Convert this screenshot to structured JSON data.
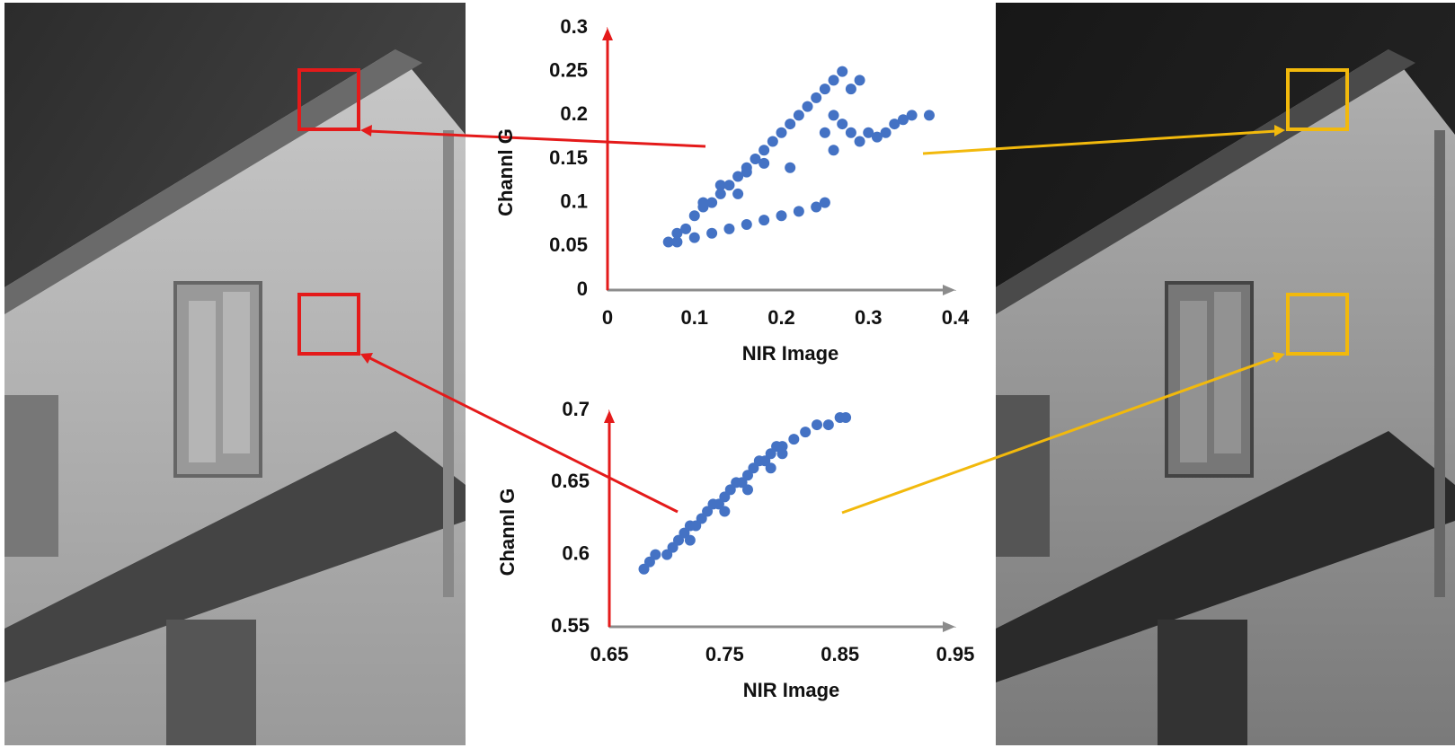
{
  "chart_data": [
    {
      "type": "scatter",
      "x_label": "NIR Image",
      "y_label": "Channl G",
      "color": "#4472c4",
      "xlim": [
        0,
        0.4
      ],
      "ylim": [
        0,
        0.3
      ],
      "xticks": [
        0,
        0.1,
        0.2,
        0.3,
        0.4
      ],
      "yticks": [
        0,
        0.05,
        0.1,
        0.15,
        0.2,
        0.25,
        0.3
      ],
      "x": [
        0.07,
        0.08,
        0.09,
        0.1,
        0.11,
        0.12,
        0.13,
        0.14,
        0.15,
        0.16,
        0.17,
        0.18,
        0.19,
        0.2,
        0.21,
        0.22,
        0.23,
        0.24,
        0.25,
        0.26,
        0.27,
        0.08,
        0.1,
        0.12,
        0.14,
        0.16,
        0.18,
        0.2,
        0.22,
        0.24,
        0.25,
        0.13,
        0.16,
        0.18,
        0.21,
        0.11,
        0.15,
        0.26,
        0.27,
        0.28,
        0.29,
        0.3,
        0.31,
        0.32,
        0.33,
        0.34,
        0.35,
        0.37,
        0.25,
        0.26,
        0.28,
        0.29
      ],
      "y": [
        0.055,
        0.065,
        0.07,
        0.085,
        0.095,
        0.1,
        0.11,
        0.12,
        0.13,
        0.135,
        0.15,
        0.16,
        0.17,
        0.18,
        0.19,
        0.2,
        0.21,
        0.22,
        0.23,
        0.24,
        0.25,
        0.055,
        0.06,
        0.065,
        0.07,
        0.075,
        0.08,
        0.085,
        0.09,
        0.095,
        0.1,
        0.12,
        0.14,
        0.145,
        0.14,
        0.1,
        0.11,
        0.2,
        0.19,
        0.18,
        0.17,
        0.18,
        0.175,
        0.18,
        0.19,
        0.195,
        0.2,
        0.2,
        0.18,
        0.16,
        0.23,
        0.24
      ]
    },
    {
      "type": "scatter",
      "x_label": "NIR Image",
      "y_label": "Channl G",
      "color": "#4472c4",
      "xlim": [
        0.65,
        0.95
      ],
      "ylim": [
        0.55,
        0.7
      ],
      "xticks": [
        0.65,
        0.75,
        0.85,
        0.95
      ],
      "yticks": [
        0.55,
        0.6,
        0.65,
        0.7
      ],
      "x": [
        0.68,
        0.685,
        0.69,
        0.7,
        0.705,
        0.71,
        0.715,
        0.72,
        0.725,
        0.73,
        0.735,
        0.74,
        0.745,
        0.75,
        0.755,
        0.76,
        0.765,
        0.77,
        0.775,
        0.78,
        0.785,
        0.79,
        0.795,
        0.8,
        0.81,
        0.82,
        0.83,
        0.84,
        0.85,
        0.855,
        0.75,
        0.77,
        0.79,
        0.72,
        0.8
      ],
      "y": [
        0.59,
        0.595,
        0.6,
        0.6,
        0.605,
        0.61,
        0.615,
        0.62,
        0.62,
        0.625,
        0.63,
        0.635,
        0.635,
        0.64,
        0.645,
        0.65,
        0.65,
        0.655,
        0.66,
        0.665,
        0.665,
        0.67,
        0.675,
        0.675,
        0.68,
        0.685,
        0.69,
        0.69,
        0.695,
        0.695,
        0.63,
        0.645,
        0.66,
        0.61,
        0.67
      ]
    }
  ]
}
